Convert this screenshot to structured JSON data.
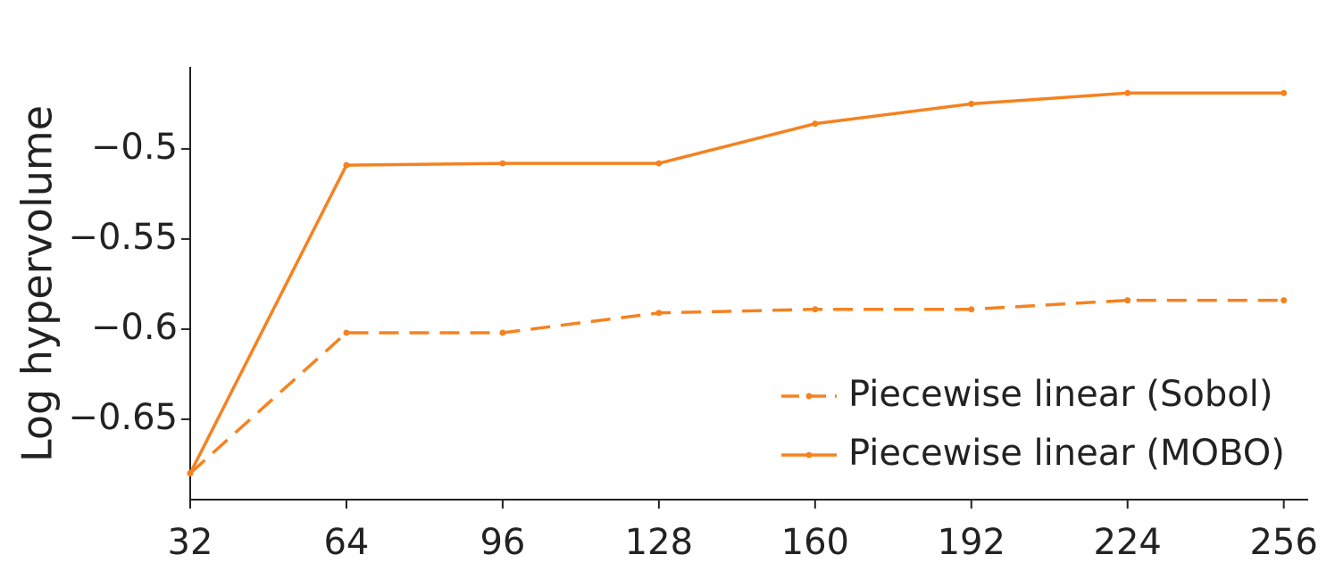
{
  "chart_data": {
    "type": "line",
    "ylabel": "Log hypervolume",
    "x": [
      32,
      64,
      96,
      128,
      160,
      192,
      224,
      256
    ],
    "series": [
      {
        "name": "Piecewise linear (Sobol)",
        "color": "#f5821f",
        "linestyle": "dashed",
        "values": [
          -0.68,
          -0.602,
          -0.602,
          -0.591,
          -0.589,
          -0.589,
          -0.584,
          -0.584
        ]
      },
      {
        "name": "Piecewise linear (MOBO)",
        "color": "#f5821f",
        "linestyle": "solid",
        "values": [
          -0.68,
          -0.509,
          -0.508,
          -0.508,
          -0.486,
          -0.475,
          -0.469,
          -0.469
        ]
      }
    ],
    "xlim": [
      32,
      261
    ],
    "xticks": [
      32,
      64,
      96,
      128,
      160,
      192,
      224,
      256
    ],
    "ylim": [
      -0.6946,
      -0.4545
    ],
    "yticks": [
      {
        "value": -0.5,
        "label": "−0.5"
      },
      {
        "value": -0.55,
        "label": "−0.55"
      },
      {
        "value": -0.6,
        "label": "−0.6"
      },
      {
        "value": -0.65,
        "label": "−0.65"
      }
    ],
    "grid": false,
    "legend": "lower right"
  }
}
